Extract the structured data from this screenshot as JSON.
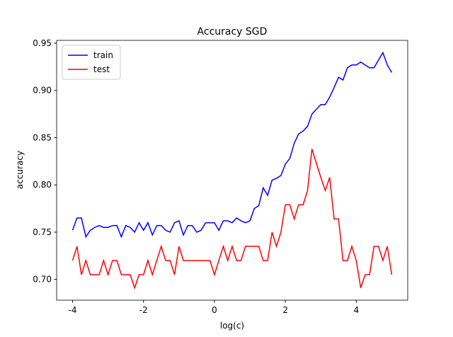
{
  "chart_data": {
    "type": "line",
    "title": "Accuracy SGD",
    "x_label": "log(c)",
    "y_label": "accuracy",
    "x": [
      -4,
      -3.875,
      -3.75,
      -3.625,
      -3.5,
      -3.375,
      -3.25,
      -3.125,
      -3,
      -2.875,
      -2.75,
      -2.625,
      -2.5,
      -2.375,
      -2.25,
      -2.125,
      -2,
      -1.875,
      -1.75,
      -1.625,
      -1.5,
      -1.375,
      -1.25,
      -1.125,
      -1,
      -0.875,
      -0.75,
      -0.625,
      -0.5,
      -0.375,
      -0.25,
      -0.125,
      0,
      0.125,
      0.25,
      0.375,
      0.5,
      0.625,
      0.75,
      0.875,
      1,
      1.125,
      1.25,
      1.375,
      1.5,
      1.625,
      1.75,
      1.875,
      2,
      2.125,
      2.25,
      2.375,
      2.5,
      2.625,
      2.75,
      2.875,
      3,
      3.125,
      3.25,
      3.375,
      3.5,
      3.625,
      3.75,
      3.875,
      4,
      4.125,
      4.25,
      4.375,
      4.5,
      4.625,
      4.75,
      4.875,
      5
    ],
    "series": [
      {
        "name": "train",
        "color": "#0000ff",
        "values": [
          0.752,
          0.765,
          0.765,
          0.745,
          0.752,
          0.755,
          0.757,
          0.755,
          0.755,
          0.757,
          0.757,
          0.745,
          0.757,
          0.755,
          0.75,
          0.76,
          0.752,
          0.76,
          0.747,
          0.757,
          0.757,
          0.752,
          0.75,
          0.76,
          0.762,
          0.747,
          0.757,
          0.757,
          0.75,
          0.752,
          0.76,
          0.76,
          0.76,
          0.752,
          0.762,
          0.762,
          0.76,
          0.765,
          0.762,
          0.76,
          0.762,
          0.775,
          0.778,
          0.797,
          0.789,
          0.805,
          0.807,
          0.81,
          0.822,
          0.828,
          0.844,
          0.854,
          0.857,
          0.862,
          0.875,
          0.88,
          0.885,
          0.885,
          0.893,
          0.903,
          0.914,
          0.911,
          0.924,
          0.927,
          0.927,
          0.93,
          0.927,
          0.924,
          0.924,
          0.932,
          0.94,
          0.927,
          0.919
        ]
      },
      {
        "name": "test",
        "color": "#ff0000",
        "values": [
          0.72,
          0.735,
          0.705,
          0.72,
          0.705,
          0.705,
          0.705,
          0.72,
          0.705,
          0.72,
          0.72,
          0.705,
          0.705,
          0.705,
          0.691,
          0.705,
          0.705,
          0.72,
          0.705,
          0.72,
          0.735,
          0.72,
          0.72,
          0.705,
          0.735,
          0.72,
          0.72,
          0.72,
          0.72,
          0.72,
          0.72,
          0.72,
          0.705,
          0.72,
          0.735,
          0.72,
          0.735,
          0.72,
          0.72,
          0.735,
          0.735,
          0.735,
          0.735,
          0.72,
          0.72,
          0.75,
          0.735,
          0.75,
          0.779,
          0.779,
          0.764,
          0.779,
          0.779,
          0.794,
          0.838,
          0.823,
          0.808,
          0.794,
          0.808,
          0.764,
          0.764,
          0.72,
          0.72,
          0.735,
          0.72,
          0.691,
          0.705,
          0.705,
          0.735,
          0.735,
          0.72,
          0.735,
          0.705
        ]
      }
    ],
    "xlim": [
      -4.45,
      5.45
    ],
    "ylim": [
      0.678,
      0.953
    ],
    "xticks": [
      -4,
      -2,
      0,
      2,
      4
    ],
    "yticks": [
      {
        "value": 0.7,
        "label": "0.70"
      },
      {
        "value": 0.75,
        "label": "0.75"
      },
      {
        "value": 0.8,
        "label": "0.80"
      },
      {
        "value": 0.85,
        "label": "0.85"
      },
      {
        "value": 0.9,
        "label": "0.90"
      },
      {
        "value": 0.95,
        "label": "0.95"
      }
    ],
    "legend": "upper left",
    "grid": false
  }
}
